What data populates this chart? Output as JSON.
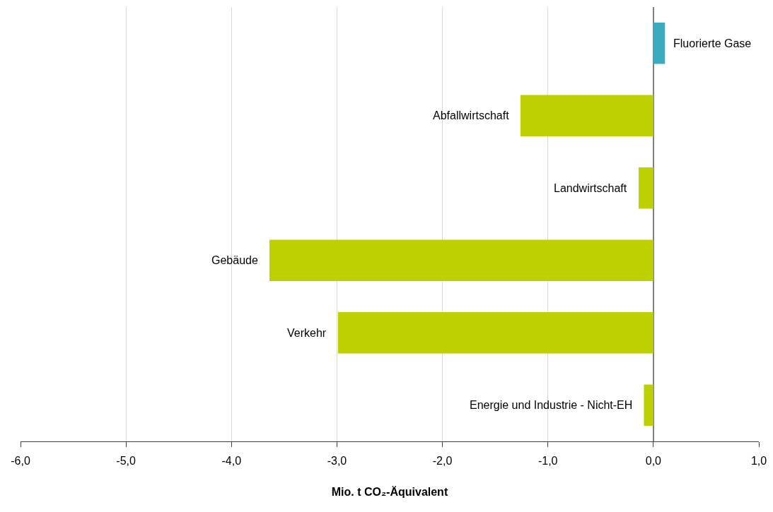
{
  "chart_data": {
    "type": "bar",
    "orientation": "horizontal",
    "xlabel": "Mio. t CO₂-Äquivalent",
    "categories": [
      "Fluorierte Gase",
      "Abfallwirtschaft",
      "Landwirtschaft",
      "Gebäude",
      "Verkehr",
      "Energie und Industrie - Nicht-EH"
    ],
    "values": [
      0.11,
      -1.26,
      -0.14,
      -3.64,
      -2.99,
      -0.09
    ],
    "colors": [
      "#3aacbd",
      "#bdd000",
      "#bdd000",
      "#bdd000",
      "#bdd000",
      "#bdd000"
    ],
    "xlim": [
      -6,
      1
    ],
    "xticks": [
      {
        "value": -6,
        "label": "-6,0"
      },
      {
        "value": -5,
        "label": "-5,0"
      },
      {
        "value": -4,
        "label": "-4,0"
      },
      {
        "value": -3,
        "label": "-3,0"
      },
      {
        "value": -2,
        "label": "-2,0"
      },
      {
        "value": -1,
        "label": "-1,0"
      },
      {
        "value": 0,
        "label": "0,0"
      },
      {
        "value": 1,
        "label": "1,0"
      }
    ],
    "grid": "x",
    "tick_labels": "x"
  }
}
